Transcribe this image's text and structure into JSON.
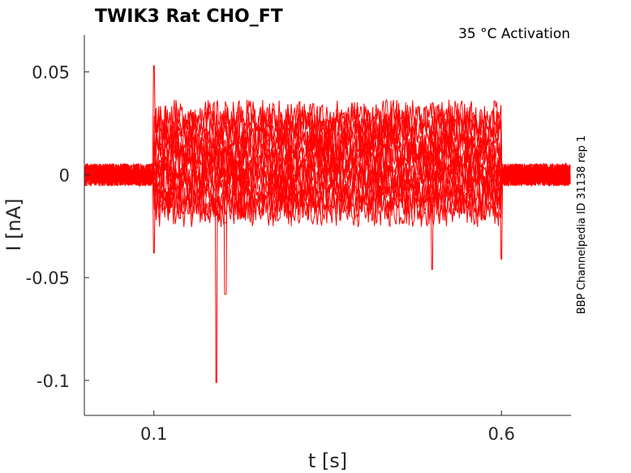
{
  "chart_data": {
    "type": "line",
    "title": "TWIK3  Rat  CHO_FT",
    "annotation": "35 °C  Activation",
    "side_label": "BBP Channelpedia ID 31138 rep 1",
    "xlabel": "t [s]",
    "ylabel": "I [nA]",
    "xlim": [
      0.0,
      0.7
    ],
    "ylim": [
      -0.117,
      0.068
    ],
    "x_ticks": [
      {
        "value": 0.1,
        "label": "0.1"
      },
      {
        "value": 0.6,
        "label": "0.6"
      }
    ],
    "y_ticks": [
      {
        "value": 0.05,
        "label": "0.05"
      },
      {
        "value": 0.0,
        "label": "0"
      },
      {
        "value": -0.05,
        "label": "-0.05"
      },
      {
        "value": -0.1,
        "label": "-0.1"
      }
    ],
    "grid": false,
    "line_color": "#ff0000",
    "stimulus": {
      "start": 0.1,
      "end": 0.6
    },
    "series": [
      {
        "level": -0.017
      },
      {
        "level": -0.014
      },
      {
        "level": -0.011
      },
      {
        "level": -0.008
      },
      {
        "level": -0.005
      },
      {
        "level": -0.002
      },
      {
        "level": 0.001
      },
      {
        "level": 0.004
      },
      {
        "level": 0.007
      },
      {
        "level": 0.01
      },
      {
        "level": 0.013
      },
      {
        "level": 0.016
      },
      {
        "level": 0.019
      },
      {
        "level": 0.022
      },
      {
        "level": 0.025
      },
      {
        "level": 0.028
      }
    ],
    "transients": [
      {
        "t": 0.1,
        "peak": 0.053,
        "trough": -0.038
      },
      {
        "t": 0.19,
        "trough": -0.101
      },
      {
        "t": 0.203,
        "trough": -0.058
      },
      {
        "t": 0.5,
        "trough": -0.046
      },
      {
        "t": 0.6,
        "trough": -0.041
      }
    ]
  }
}
